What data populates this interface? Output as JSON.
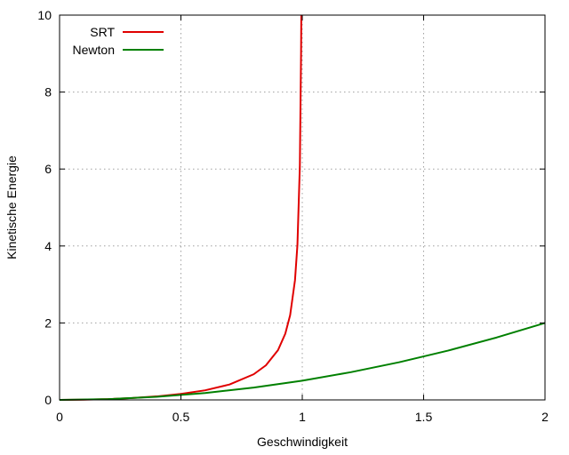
{
  "chart_data": {
    "type": "line",
    "title": "",
    "xlabel": "Geschwindigkeit",
    "ylabel": "Kinetische Energie",
    "xlim": [
      0,
      2
    ],
    "ylim": [
      0,
      10
    ],
    "xticks": [
      "0",
      "0.5",
      "1",
      "1.5",
      "2"
    ],
    "xtick_values": [
      0,
      0.5,
      1,
      1.5,
      2
    ],
    "yticks": [
      "0",
      "2",
      "4",
      "6",
      "8",
      "10"
    ],
    "ytick_values": [
      0,
      2,
      4,
      6,
      8,
      10
    ],
    "grid": true,
    "legend_position": "top-left",
    "series": [
      {
        "name": "SRT",
        "color": "#e00000",
        "points": [
          [
            0,
            0
          ],
          [
            0.1,
            0.005
          ],
          [
            0.2,
            0.021
          ],
          [
            0.3,
            0.048
          ],
          [
            0.4,
            0.091
          ],
          [
            0.5,
            0.155
          ],
          [
            0.6,
            0.25
          ],
          [
            0.7,
            0.4
          ],
          [
            0.8,
            0.667
          ],
          [
            0.85,
            0.898
          ],
          [
            0.9,
            1.294
          ],
          [
            0.93,
            1.72
          ],
          [
            0.95,
            2.203
          ],
          [
            0.97,
            3.113
          ],
          [
            0.98,
            4.025
          ],
          [
            0.99,
            6.089
          ],
          [
            0.995,
            9.0
          ],
          [
            0.996,
            10
          ]
        ]
      },
      {
        "name": "Newton",
        "color": "#008000",
        "points": [
          [
            0,
            0
          ],
          [
            0.2,
            0.02
          ],
          [
            0.4,
            0.08
          ],
          [
            0.6,
            0.18
          ],
          [
            0.8,
            0.32
          ],
          [
            1.0,
            0.5
          ],
          [
            1.2,
            0.72
          ],
          [
            1.4,
            0.98
          ],
          [
            1.6,
            1.28
          ],
          [
            1.8,
            1.62
          ],
          [
            2.0,
            2.0
          ]
        ]
      }
    ]
  }
}
